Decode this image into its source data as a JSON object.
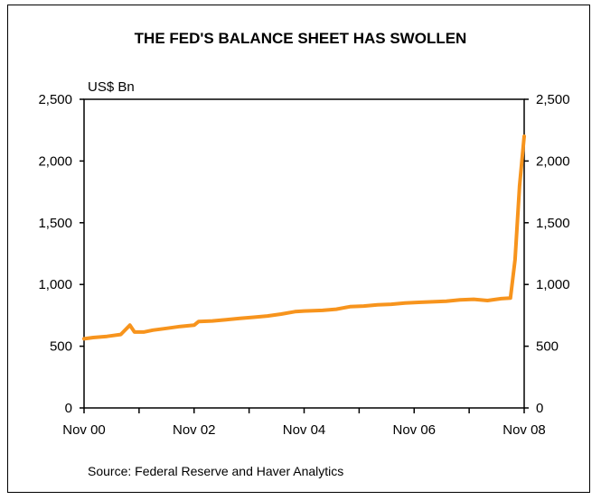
{
  "chart_data": {
    "type": "line",
    "title": "THE FED'S BALANCE SHEET HAS SWOLLEN",
    "unit_label": "US$ Bn",
    "source": "Source: Federal Reserve and Haver Analytics",
    "xlabel": "",
    "ylabel": "",
    "ylim": [
      0,
      2500
    ],
    "yticks": [
      0,
      500,
      1000,
      1500,
      2000,
      2500
    ],
    "ytick_labels": [
      "0",
      "500",
      "1,000",
      "1,500",
      "2,000",
      "2,500"
    ],
    "xlim": [
      "2000-11",
      "2008-11"
    ],
    "xtick_labels": [
      "Nov 00",
      "Nov 02",
      "Nov 04",
      "Nov 06",
      "Nov 08"
    ],
    "secondary_y_axis": true,
    "grid": false,
    "line_color": "#f7941d",
    "series": [
      {
        "x": [
          "2000-11",
          "2001-01",
          "2001-04",
          "2001-07",
          "2001-09",
          "2001-10",
          "2001-12",
          "2002-02",
          "2002-05",
          "2002-08",
          "2002-11",
          "2002-12",
          "2003-03",
          "2003-06",
          "2003-09",
          "2003-12",
          "2004-03",
          "2004-06",
          "2004-09",
          "2004-11",
          "2005-03",
          "2005-06",
          "2005-09",
          "2005-12",
          "2006-03",
          "2006-06",
          "2006-09",
          "2006-12",
          "2007-03",
          "2007-06",
          "2007-09",
          "2007-12",
          "2008-03",
          "2008-06",
          "2008-08",
          "2008-09",
          "2008-10",
          "2008-11"
        ],
        "values": [
          560,
          570,
          580,
          595,
          670,
          615,
          615,
          630,
          645,
          660,
          670,
          700,
          705,
          715,
          725,
          735,
          745,
          760,
          780,
          785,
          790,
          800,
          820,
          825,
          835,
          840,
          850,
          855,
          860,
          865,
          875,
          880,
          870,
          885,
          890,
          1200,
          1800,
          2200
        ]
      }
    ]
  }
}
